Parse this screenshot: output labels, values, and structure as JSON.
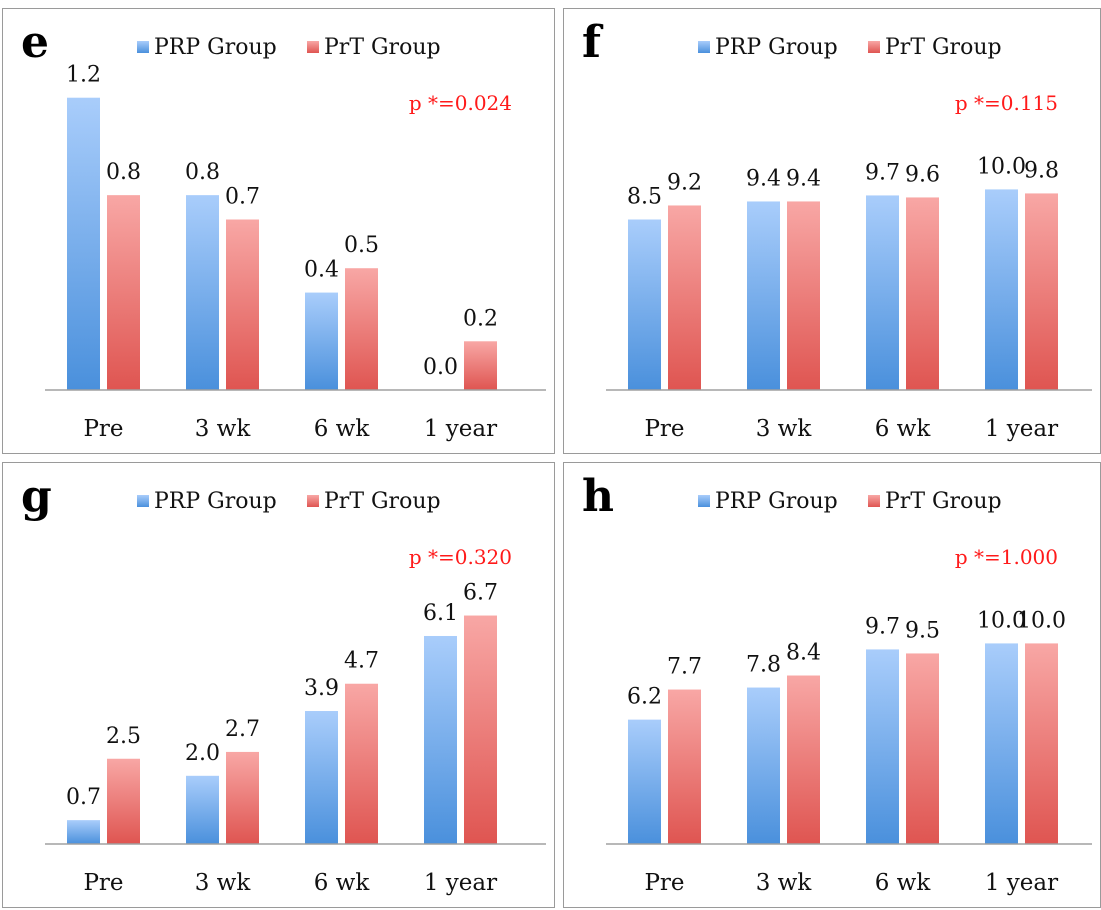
{
  "colors": {
    "prp_light": "#a9cdfb",
    "prp_dark": "#4a90dc",
    "prt_light": "#f8a7a5",
    "prt_dark": "#df5551",
    "p_value_text": "#ff1a1a",
    "axis": "#a0a0a0"
  },
  "chart_data": [
    {
      "type": "bar",
      "panel_label": "e",
      "p_value": "p *=0.024",
      "categories": [
        "Pre",
        "3 wk",
        "6 wk",
        "1 year"
      ],
      "ylim": [
        0,
        1.4
      ],
      "series": [
        {
          "name": "PRP Group",
          "values": [
            1.2,
            0.8,
            0.4,
            0.0
          ],
          "labels": [
            "1.2",
            "0.8",
            "0.4",
            "0.0"
          ]
        },
        {
          "name": "PrT Group",
          "values": [
            0.8,
            0.7,
            0.5,
            0.2
          ],
          "labels": [
            "0.8",
            "0.7",
            "0.5",
            "0.2"
          ]
        }
      ]
    },
    {
      "type": "bar",
      "panel_label": "f",
      "p_value": "p *=0.115",
      "categories": [
        "Pre",
        "3 wk",
        "6 wk",
        "1 year"
      ],
      "ylim": [
        0,
        17
      ],
      "series": [
        {
          "name": "PRP Group",
          "values": [
            8.5,
            9.4,
            9.7,
            10.0
          ],
          "labels": [
            "8.5",
            "9.4",
            "9.7",
            "10.0"
          ]
        },
        {
          "name": "PrT Group",
          "values": [
            9.2,
            9.4,
            9.6,
            9.8
          ],
          "labels": [
            "9.2",
            "9.4",
            "9.6",
            "9.8"
          ]
        }
      ]
    },
    {
      "type": "bar",
      "panel_label": "g",
      "p_value": "p *=0.320",
      "categories": [
        "Pre",
        "3 wk",
        "6 wk",
        "1 year"
      ],
      "ylim": [
        0,
        10
      ],
      "series": [
        {
          "name": "PRP Group",
          "values": [
            0.7,
            2.0,
            3.9,
            6.1
          ],
          "labels": [
            "0.7",
            "2.0",
            "3.9",
            "6.1"
          ]
        },
        {
          "name": "PrT Group",
          "values": [
            2.5,
            2.7,
            4.7,
            6.7
          ],
          "labels": [
            "2.5",
            "2.7",
            "4.7",
            "6.7"
          ]
        }
      ]
    },
    {
      "type": "bar",
      "panel_label": "h",
      "p_value": "p *=1.000",
      "categories": [
        "Pre",
        "3 wk",
        "6 wk",
        "1 year"
      ],
      "ylim": [
        0,
        17
      ],
      "series": [
        {
          "name": "PRP Group",
          "values": [
            6.2,
            7.8,
            9.7,
            10.0
          ],
          "labels": [
            "6.2",
            "7.8",
            "9.7",
            "10.0"
          ]
        },
        {
          "name": "PrT Group",
          "values": [
            7.7,
            8.4,
            9.5,
            10.0
          ],
          "labels": [
            "7.7",
            "8.4",
            "9.5",
            "10.0"
          ]
        }
      ]
    }
  ]
}
